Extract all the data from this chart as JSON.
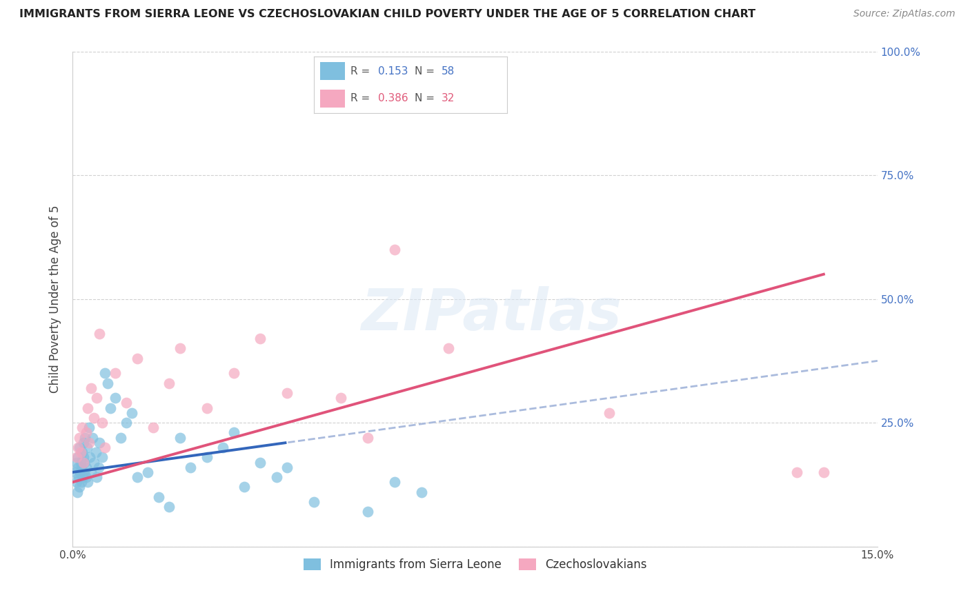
{
  "title": "IMMIGRANTS FROM SIERRA LEONE VS CZECHOSLOVAKIAN CHILD POVERTY UNDER THE AGE OF 5 CORRELATION CHART",
  "source": "Source: ZipAtlas.com",
  "ylabel": "Child Poverty Under the Age of 5",
  "xmin": 0.0,
  "xmax": 15.0,
  "ymin": 0.0,
  "ymax": 100.0,
  "yticks": [
    0.0,
    25.0,
    50.0,
    75.0,
    100.0
  ],
  "blue_R": 0.153,
  "blue_N": 58,
  "pink_R": 0.386,
  "pink_N": 32,
  "blue_color": "#7fbfdf",
  "pink_color": "#f5a8c0",
  "blue_line_color": "#3366bb",
  "pink_line_color": "#e0537a",
  "dashed_color": "#aabbdd",
  "watermark_text": "ZIPatlas",
  "blue_label": "Immigrants from Sierra Leone",
  "pink_label": "Czechoslovakians",
  "blue_solid_end": 4.0,
  "pink_solid_end": 14.0,
  "blue_points_x": [
    0.05,
    0.07,
    0.08,
    0.09,
    0.1,
    0.1,
    0.11,
    0.12,
    0.13,
    0.14,
    0.15,
    0.16,
    0.17,
    0.18,
    0.19,
    0.2,
    0.2,
    0.21,
    0.22,
    0.23,
    0.25,
    0.26,
    0.27,
    0.28,
    0.3,
    0.32,
    0.35,
    0.37,
    0.4,
    0.43,
    0.45,
    0.48,
    0.5,
    0.55,
    0.6,
    0.65,
    0.7,
    0.8,
    0.9,
    1.0,
    1.1,
    1.2,
    1.4,
    1.6,
    1.8,
    2.0,
    2.2,
    2.5,
    2.8,
    3.0,
    3.2,
    3.5,
    3.8,
    4.0,
    4.5,
    5.5,
    6.0,
    6.5
  ],
  "blue_points_y": [
    15,
    17,
    13,
    11,
    18,
    16,
    14,
    20,
    12,
    15,
    17,
    13,
    16,
    19,
    14,
    18,
    21,
    15,
    17,
    22,
    14,
    16,
    20,
    13,
    24,
    18,
    15,
    22,
    17,
    19,
    14,
    16,
    21,
    18,
    35,
    33,
    28,
    30,
    22,
    25,
    27,
    14,
    15,
    10,
    8,
    22,
    16,
    18,
    20,
    23,
    12,
    17,
    14,
    16,
    9,
    7,
    13,
    11
  ],
  "pink_points_x": [
    0.08,
    0.1,
    0.12,
    0.15,
    0.18,
    0.2,
    0.25,
    0.28,
    0.3,
    0.35,
    0.4,
    0.45,
    0.5,
    0.55,
    0.6,
    0.8,
    1.0,
    1.2,
    1.5,
    1.8,
    2.0,
    2.5,
    3.0,
    3.5,
    4.0,
    5.0,
    5.5,
    6.0,
    7.0,
    10.0,
    13.5,
    14.0
  ],
  "pink_points_y": [
    18,
    20,
    22,
    19,
    24,
    17,
    23,
    28,
    21,
    32,
    26,
    30,
    43,
    25,
    20,
    35,
    29,
    38,
    24,
    33,
    40,
    28,
    35,
    42,
    31,
    30,
    22,
    60,
    40,
    27,
    15,
    15
  ]
}
